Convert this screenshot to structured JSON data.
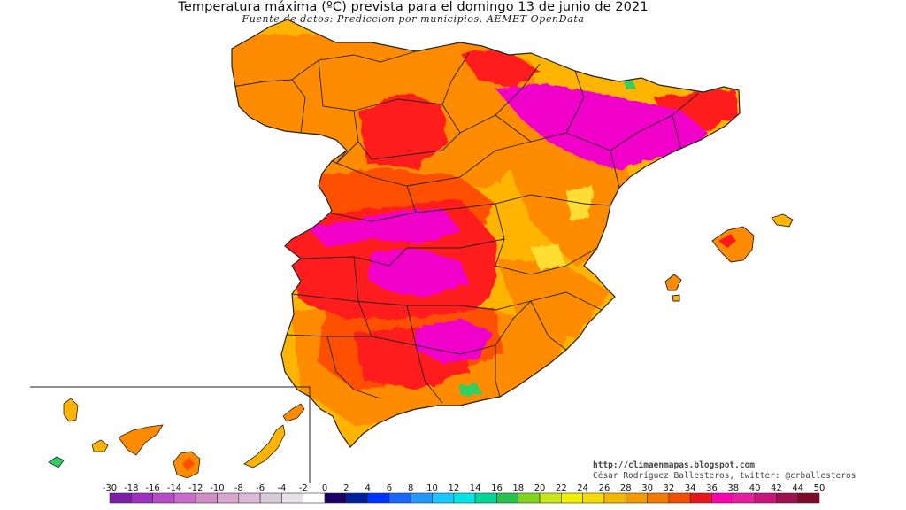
{
  "title": "Temperatura máxima (ºC) prevista para el domingo 13 de junio de 2021",
  "subtitle": "Fuente de datos: Prediccion por municipios. AEMET OpenData",
  "credits": {
    "url": "http://climaenmapas.blogspot.com",
    "author": "César Rodríguez Ballesteros, twitter: @crballesteros"
  },
  "legend": {
    "labels": [
      "-30",
      "-18",
      "-16",
      "-14",
      "-12",
      "-10",
      "-8",
      "-6",
      "-4",
      "-2",
      "0",
      "2",
      "4",
      "6",
      "8",
      "10",
      "12",
      "14",
      "16",
      "18",
      "20",
      "22",
      "24",
      "26",
      "28",
      "30",
      "32",
      "34",
      "36",
      "38",
      "40",
      "42",
      "44",
      "50"
    ],
    "colors": [
      "#7a1fa8",
      "#9b30c2",
      "#b74cc9",
      "#c86ccc",
      "#d08dc6",
      "#d9a6cf",
      "#dcb9d6",
      "#d7cbd9",
      "#e6e3e6",
      "#ffffff",
      "#1a0066",
      "#001f9e",
      "#0033ff",
      "#1a66ff",
      "#2199ff",
      "#19c8ff",
      "#00e5e5",
      "#00d69a",
      "#26c44d",
      "#7fd61a",
      "#c8e619",
      "#f0f000",
      "#f5dc00",
      "#f5b800",
      "#f59a00",
      "#f57a00",
      "#f25000",
      "#e8141e",
      "#ff00b0",
      "#e61ea0",
      "#c8147f",
      "#a0104f",
      "#7f0a2a"
    ]
  },
  "colors": {
    "hot_magenta": "#f000c8",
    "very_hot_red": "#ff1a1a",
    "hot_dark_orange": "#ff5000",
    "warm_orange": "#ff8c00",
    "mild_amber": "#ffb400",
    "cool_yellow": "#ffdd30",
    "cold_green": "#30d060",
    "border_line": "#222222"
  }
}
